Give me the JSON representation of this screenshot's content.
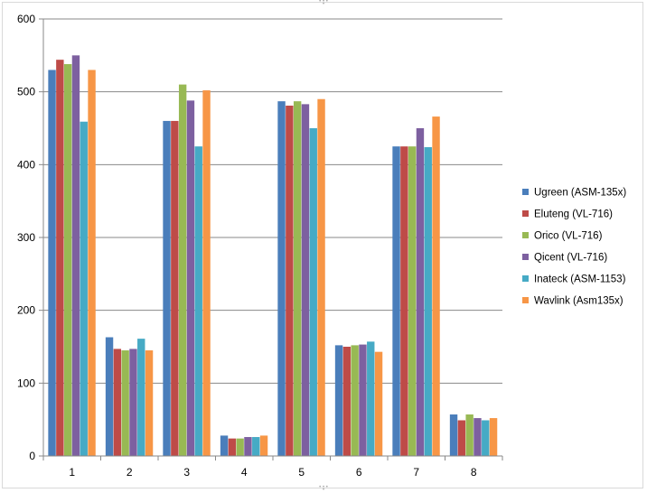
{
  "chart_data": {
    "type": "bar",
    "title": "",
    "xlabel": "",
    "ylabel": "",
    "ylim": [
      0,
      600
    ],
    "y_ticks": [
      "0",
      "100",
      "200",
      "300",
      "400",
      "500",
      "600"
    ],
    "grid": true,
    "legend_position": "right",
    "categories": [
      "1",
      "2",
      "3",
      "4",
      "5",
      "6",
      "7",
      "8"
    ],
    "series": [
      {
        "name": "Ugreen (ASM-135x)",
        "color": "#4a7ebb",
        "values": [
          530,
          163,
          460,
          28,
          487,
          152,
          425,
          57
        ]
      },
      {
        "name": "Eluteng (VL-716)",
        "color": "#be4b48",
        "values": [
          544,
          147,
          460,
          24,
          481,
          150,
          425,
          49
        ]
      },
      {
        "name": "Orico (VL-716)",
        "color": "#98b954",
        "values": [
          538,
          145,
          510,
          24,
          487,
          152,
          425,
          57
        ]
      },
      {
        "name": "Qicent (VL-716)",
        "color": "#7d60a0",
        "values": [
          550,
          147,
          488,
          26,
          483,
          153,
          450,
          52
        ]
      },
      {
        "name": "Inateck (ASM-1153)",
        "color": "#46aac5",
        "values": [
          459,
          161,
          425,
          26,
          450,
          157,
          424,
          49
        ]
      },
      {
        "name": "Wavlink (Asm135x)",
        "color": "#f79646",
        "values": [
          530,
          145,
          502,
          28,
          490,
          143,
          466,
          52
        ]
      }
    ]
  }
}
